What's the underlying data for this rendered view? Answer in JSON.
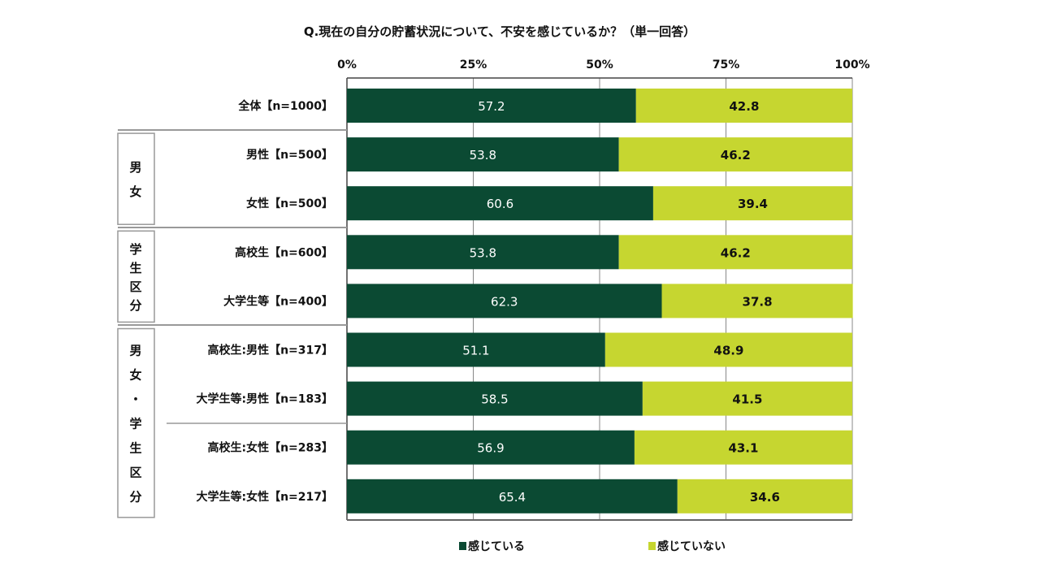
{
  "chart_data": {
    "type": "bar",
    "stacked": true,
    "orientation": "horizontal",
    "title": "Q.現在の自分の貯蓄状況について、不安を感じているか？（単一回答）",
    "xlim": [
      0,
      100
    ],
    "x_ticks": [
      "0%",
      "25%",
      "50%",
      "75%",
      "100%"
    ],
    "grid": true,
    "legend_position": "bottom",
    "categories": [
      "全体【n=1000】",
      "男性【n=500】",
      "女性【n=500】",
      "高校生【n=600】",
      "大学生等【n=400】",
      "高校生:男性【n=317】",
      "大学生等:男性【n=183】",
      "高校生:女性【n=283】",
      "大学生等:女性【n=217】"
    ],
    "groups": [
      {
        "label": "男女",
        "rows": [
          1,
          2
        ]
      },
      {
        "label": "学生区分",
        "rows": [
          3,
          4
        ]
      },
      {
        "label": "男女・学生区分",
        "rows": [
          5,
          6,
          7,
          8
        ]
      }
    ],
    "series": [
      {
        "name": "感じている",
        "color": "#0b4a33",
        "values": [
          57.2,
          53.8,
          60.6,
          53.8,
          62.3,
          51.1,
          58.5,
          56.9,
          65.4
        ]
      },
      {
        "name": "感じていない",
        "color": "#c6d630",
        "values": [
          42.8,
          46.2,
          39.4,
          46.2,
          37.8,
          48.9,
          41.5,
          43.1,
          34.6
        ]
      }
    ]
  }
}
